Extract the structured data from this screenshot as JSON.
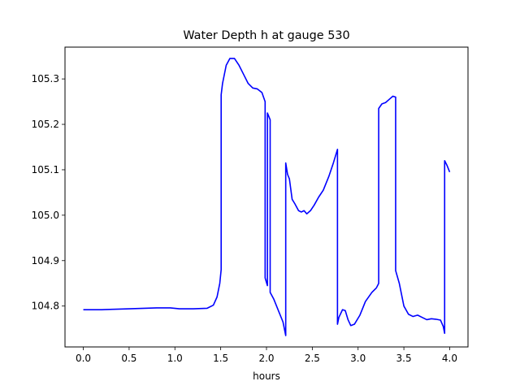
{
  "chart_data": {
    "type": "line",
    "title": "Water Depth h at gauge 530",
    "xlabel": "hours",
    "ylabel": "",
    "xlim": [
      -0.2,
      4.2
    ],
    "ylim": [
      104.71,
      105.37
    ],
    "x_ticks": [
      0.0,
      0.5,
      1.0,
      1.5,
      2.0,
      2.5,
      3.0,
      3.5,
      4.0
    ],
    "x_tick_labels": [
      "0.0",
      "0.5",
      "1.0",
      "1.5",
      "2.0",
      "2.5",
      "3.0",
      "3.5",
      "4.0"
    ],
    "y_ticks": [
      104.8,
      104.9,
      105.0,
      105.1,
      105.2,
      105.3
    ],
    "y_tick_labels": [
      "104.8",
      "104.9",
      "105.0",
      "105.1",
      "105.2",
      "105.3"
    ],
    "grid": false,
    "series": [
      {
        "color": "#0000ff",
        "points": [
          [
            0.0,
            104.792
          ],
          [
            0.2,
            104.792
          ],
          [
            0.5,
            104.794
          ],
          [
            0.8,
            104.796
          ],
          [
            0.95,
            104.796
          ],
          [
            1.05,
            104.794
          ],
          [
            1.2,
            104.794
          ],
          [
            1.35,
            104.795
          ],
          [
            1.42,
            104.802
          ],
          [
            1.46,
            104.82
          ],
          [
            1.49,
            104.85
          ],
          [
            1.505,
            104.88
          ],
          [
            1.505,
            105.265
          ],
          [
            1.52,
            105.29
          ],
          [
            1.56,
            105.33
          ],
          [
            1.6,
            105.345
          ],
          [
            1.65,
            105.345
          ],
          [
            1.7,
            105.33
          ],
          [
            1.75,
            105.31
          ],
          [
            1.8,
            105.29
          ],
          [
            1.85,
            105.28
          ],
          [
            1.9,
            105.278
          ],
          [
            1.95,
            105.27
          ],
          [
            1.985,
            105.25
          ],
          [
            1.985,
            104.862
          ],
          [
            2.01,
            104.845
          ],
          [
            2.01,
            105.225
          ],
          [
            2.04,
            105.21
          ],
          [
            2.04,
            104.83
          ],
          [
            2.08,
            104.815
          ],
          [
            2.13,
            104.79
          ],
          [
            2.18,
            104.765
          ],
          [
            2.21,
            104.735
          ],
          [
            2.21,
            105.115
          ],
          [
            2.23,
            105.09
          ],
          [
            2.25,
            105.08
          ],
          [
            2.28,
            105.035
          ],
          [
            2.31,
            105.025
          ],
          [
            2.35,
            105.01
          ],
          [
            2.38,
            105.007
          ],
          [
            2.41,
            105.01
          ],
          [
            2.44,
            105.003
          ],
          [
            2.48,
            105.01
          ],
          [
            2.52,
            105.022
          ],
          [
            2.57,
            105.04
          ],
          [
            2.62,
            105.055
          ],
          [
            2.68,
            105.085
          ],
          [
            2.73,
            105.115
          ],
          [
            2.775,
            105.145
          ],
          [
            2.775,
            104.76
          ],
          [
            2.79,
            104.775
          ],
          [
            2.83,
            104.792
          ],
          [
            2.86,
            104.79
          ],
          [
            2.89,
            104.77
          ],
          [
            2.92,
            104.757
          ],
          [
            2.96,
            104.76
          ],
          [
            3.02,
            104.78
          ],
          [
            3.08,
            104.81
          ],
          [
            3.15,
            104.83
          ],
          [
            3.2,
            104.84
          ],
          [
            3.225,
            104.85
          ],
          [
            3.225,
            105.235
          ],
          [
            3.26,
            105.245
          ],
          [
            3.3,
            105.248
          ],
          [
            3.34,
            105.255
          ],
          [
            3.38,
            105.262
          ],
          [
            3.41,
            105.26
          ],
          [
            3.41,
            104.878
          ],
          [
            3.45,
            104.85
          ],
          [
            3.5,
            104.8
          ],
          [
            3.55,
            104.782
          ],
          [
            3.6,
            104.777
          ],
          [
            3.65,
            104.78
          ],
          [
            3.7,
            104.775
          ],
          [
            3.75,
            104.77
          ],
          [
            3.8,
            104.772
          ],
          [
            3.85,
            104.771
          ],
          [
            3.9,
            104.769
          ],
          [
            3.93,
            104.755
          ],
          [
            3.945,
            104.74
          ],
          [
            3.945,
            105.12
          ],
          [
            3.97,
            105.11
          ],
          [
            4.0,
            105.095
          ]
        ]
      }
    ]
  }
}
